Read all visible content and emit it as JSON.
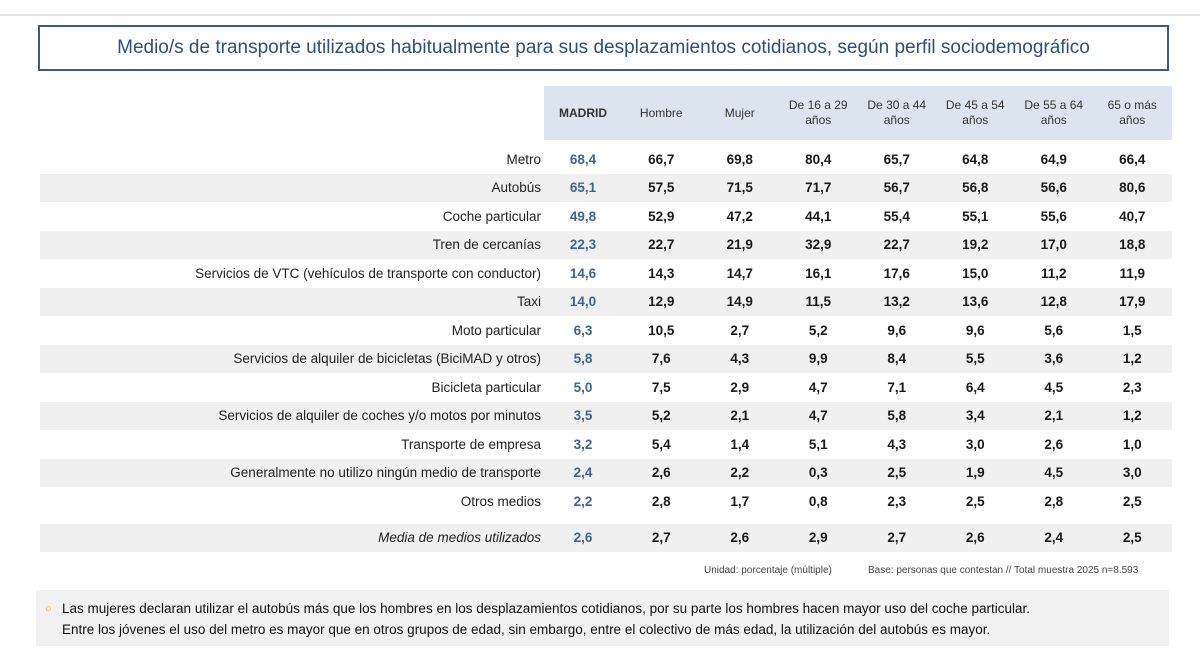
{
  "title": "Medio/s de transporte utilizados habitualmente para sus desplazamientos cotidianos, según perfil sociodemográfico",
  "columns": [
    {
      "l1": "MADRID",
      "l2": ""
    },
    {
      "l1": "Hombre",
      "l2": ""
    },
    {
      "l1": "Mujer",
      "l2": ""
    },
    {
      "l1": "De 16 a 29",
      "l2": "años"
    },
    {
      "l1": "De 30 a 44",
      "l2": "años"
    },
    {
      "l1": "De 45 a 54",
      "l2": "años"
    },
    {
      "l1": "De 55 a 64",
      "l2": "años"
    },
    {
      "l1": "65 o más",
      "l2": "años"
    }
  ],
  "rows": [
    {
      "label": "Metro",
      "madrid": "68,4",
      "values": [
        "66,7",
        "69,8",
        "80,4",
        "65,7",
        "64,8",
        "64,9",
        "66,4"
      ]
    },
    {
      "label": "Autobús",
      "madrid": "65,1",
      "values": [
        "57,5",
        "71,5",
        "71,7",
        "56,7",
        "56,8",
        "56,6",
        "80,6"
      ]
    },
    {
      "label": "Coche particular",
      "madrid": "49,8",
      "values": [
        "52,9",
        "47,2",
        "44,1",
        "55,4",
        "55,1",
        "55,6",
        "40,7"
      ]
    },
    {
      "label": "Tren de cercanías",
      "madrid": "22,3",
      "values": [
        "22,7",
        "21,9",
        "32,9",
        "22,7",
        "19,2",
        "17,0",
        "18,8"
      ]
    },
    {
      "label": "Servicios de VTC (vehículos de transporte con conductor)",
      "madrid": "14,6",
      "values": [
        "14,3",
        "14,7",
        "16,1",
        "17,6",
        "15,0",
        "11,2",
        "11,9"
      ]
    },
    {
      "label": "Taxi",
      "madrid": "14,0",
      "values": [
        "12,9",
        "14,9",
        "11,5",
        "13,2",
        "13,6",
        "12,8",
        "17,9"
      ]
    },
    {
      "label": "Moto particular",
      "madrid": "6,3",
      "values": [
        "10,5",
        "2,7",
        "5,2",
        "9,6",
        "9,6",
        "5,6",
        "1,5"
      ]
    },
    {
      "label": "Servicios de alquiler de bicicletas (BiciMAD y otros)",
      "madrid": "5,8",
      "values": [
        "7,6",
        "4,3",
        "9,9",
        "8,4",
        "5,5",
        "3,6",
        "1,2"
      ]
    },
    {
      "label": "Bicicleta particular",
      "madrid": "5,0",
      "values": [
        "7,5",
        "2,9",
        "4,7",
        "7,1",
        "6,4",
        "4,5",
        "2,3"
      ]
    },
    {
      "label": "Servicios de alquiler de coches y/o motos por minutos",
      "madrid": "3,5",
      "values": [
        "5,2",
        "2,1",
        "4,7",
        "5,8",
        "3,4",
        "2,1",
        "1,2"
      ]
    },
    {
      "label": "Transporte de empresa",
      "madrid": "3,2",
      "values": [
        "5,4",
        "1,4",
        "5,1",
        "4,3",
        "3,0",
        "2,6",
        "1,0"
      ]
    },
    {
      "label": "Generalmente no utilizo ningún medio de transporte",
      "madrid": "2,4",
      "values": [
        "2,6",
        "2,2",
        "0,3",
        "2,5",
        "1,9",
        "4,5",
        "3,0"
      ]
    },
    {
      "label": "Otros medios",
      "madrid": "2,2",
      "values": [
        "2,8",
        "1,7",
        "0,8",
        "2,3",
        "2,5",
        "2,8",
        "2,5"
      ]
    }
  ],
  "mean_row": {
    "label": "Media de medios utilizados",
    "madrid": "2,6",
    "values": [
      "2,7",
      "2,6",
      "2,9",
      "2,7",
      "2,6",
      "2,4",
      "2,5"
    ]
  },
  "footnote_unit": "Unidad: porcentaje (múltiple)",
  "footnote_base": "Base: personas que contestan  //  Total muestra 2025 n=8.593",
  "summary_bullet": "○",
  "summary_lines": [
    "Las mujeres declaran utilizar el autobús más que los hombres en los desplazamientos cotidianos, por su parte los hombres hacen mayor uso del coche particular.",
    "Entre los jóvenes el uso del metro es mayor que en otros grupos de edad, sin embargo, entre el colectivo de más edad, la utilización del autobús es mayor."
  ],
  "colors": {
    "header_bg": "#dce5ef",
    "madrid_text": "#3e6494",
    "title": "#2f4f7a",
    "row_shade": "#f0f0f0",
    "bullet": "#e6a040"
  }
}
